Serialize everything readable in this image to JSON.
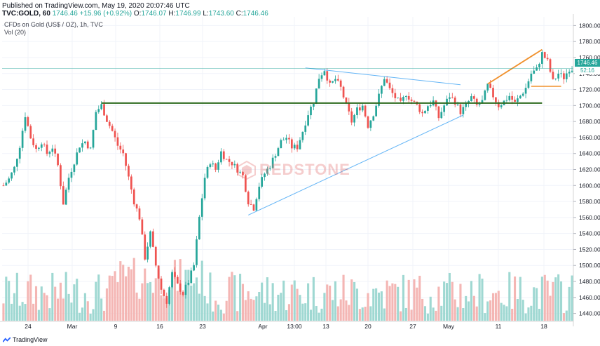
{
  "header": {
    "published": "Published on TradingView.com, May 19, 2020 20:07:46 UTC",
    "symbol": "TVC:GOLD, 60",
    "last": "1746.46",
    "change": "+15.96 (+0.92%)",
    "o_label": "O:",
    "o_value": "1746.07",
    "h_label": "H:",
    "h_value": "1746.99",
    "l_label": "L:",
    "l_value": "1743.60",
    "c_label": "C:",
    "c_value": "1746.46"
  },
  "legend": {
    "series_title": "CFDs on Gold (US$ / OZ), 1h, TVC",
    "volume_title": "Vol (20)"
  },
  "price_badge": {
    "value": "1746.46",
    "countdown": "52:16"
  },
  "watermark": {
    "text": "REDSTONE",
    "logo": "redstone-logo-icon"
  },
  "footer": {
    "brand": "TradingView",
    "icon": "tradingview-logo-icon"
  },
  "colors": {
    "up": "#26a69a",
    "down": "#ef5350",
    "up_volume": "#9fd8d2",
    "down_volume": "#f4b6b4",
    "support_line": "#2e6b1f",
    "trend_line": "#64b5f6",
    "orange_line": "#f0902c",
    "last_price_line": "#26a69a"
  },
  "chart_data": {
    "type": "candlestick",
    "title": "CFDs on Gold (US$ / OZ), 1h, TVC",
    "y_ticks": [
      1440,
      1460,
      1480,
      1500,
      1520,
      1540,
      1560,
      1580,
      1600,
      1620,
      1640,
      1660,
      1680,
      1700,
      1720,
      1740,
      1760,
      1780,
      1800
    ],
    "ylim": [
      1425,
      1810
    ],
    "x_ticks": [
      "24",
      "Mar",
      "9",
      "16",
      "23",
      "Apr",
      "13:00",
      "13",
      "20",
      "27",
      "May",
      "11",
      "18"
    ],
    "path_points": [
      [
        0,
        1600
      ],
      [
        2,
        1608
      ],
      [
        4,
        1622
      ],
      [
        6,
        1650
      ],
      [
        8,
        1688
      ],
      [
        10,
        1660
      ],
      [
        12,
        1645
      ],
      [
        14,
        1655
      ],
      [
        16,
        1640
      ],
      [
        18,
        1648
      ],
      [
        20,
        1625
      ],
      [
        22,
        1578
      ],
      [
        24,
        1610
      ],
      [
        26,
        1630
      ],
      [
        28,
        1650
      ],
      [
        30,
        1655
      ],
      [
        32,
        1645
      ],
      [
        34,
        1692
      ],
      [
        36,
        1700
      ],
      [
        38,
        1682
      ],
      [
        40,
        1668
      ],
      [
        42,
        1650
      ],
      [
        44,
        1640
      ],
      [
        46,
        1610
      ],
      [
        48,
        1580
      ],
      [
        50,
        1560
      ],
      [
        52,
        1510
      ],
      [
        54,
        1540
      ],
      [
        56,
        1500
      ],
      [
        58,
        1470
      ],
      [
        60,
        1455
      ],
      [
        62,
        1490
      ],
      [
        64,
        1475
      ],
      [
        66,
        1465
      ],
      [
        68,
        1480
      ],
      [
        70,
        1500
      ],
      [
        72,
        1560
      ],
      [
        74,
        1610
      ],
      [
        76,
        1630
      ],
      [
        78,
        1620
      ],
      [
        80,
        1642
      ],
      [
        82,
        1632
      ],
      [
        84,
        1628
      ],
      [
        86,
        1620
      ],
      [
        88,
        1612
      ],
      [
        90,
        1580
      ],
      [
        92,
        1572
      ],
      [
        94,
        1600
      ],
      [
        96,
        1615
      ],
      [
        98,
        1625
      ],
      [
        100,
        1640
      ],
      [
        102,
        1655
      ],
      [
        104,
        1660
      ],
      [
        106,
        1648
      ],
      [
        108,
        1648
      ],
      [
        110,
        1668
      ],
      [
        112,
        1690
      ],
      [
        114,
        1705
      ],
      [
        116,
        1735
      ],
      [
        118,
        1745
      ],
      [
        120,
        1725
      ],
      [
        122,
        1733
      ],
      [
        124,
        1722
      ],
      [
        126,
        1700
      ],
      [
        128,
        1680
      ],
      [
        130,
        1695
      ],
      [
        132,
        1700
      ],
      [
        134,
        1675
      ],
      [
        136,
        1690
      ],
      [
        138,
        1712
      ],
      [
        140,
        1735
      ],
      [
        142,
        1720
      ],
      [
        144,
        1710
      ],
      [
        146,
        1702
      ],
      [
        148,
        1715
      ],
      [
        150,
        1706
      ],
      [
        152,
        1700
      ],
      [
        154,
        1690
      ],
      [
        156,
        1700
      ],
      [
        158,
        1705
      ],
      [
        160,
        1685
      ],
      [
        162,
        1700
      ],
      [
        164,
        1712
      ],
      [
        166,
        1705
      ],
      [
        168,
        1692
      ],
      [
        170,
        1700
      ],
      [
        172,
        1710
      ],
      [
        174,
        1700
      ],
      [
        176,
        1705
      ],
      [
        178,
        1725
      ],
      [
        180,
        1712
      ],
      [
        182,
        1700
      ],
      [
        184,
        1705
      ],
      [
        186,
        1712
      ],
      [
        188,
        1703
      ],
      [
        190,
        1712
      ],
      [
        192,
        1722
      ],
      [
        194,
        1740
      ],
      [
        196,
        1745
      ],
      [
        198,
        1765
      ],
      [
        200,
        1755
      ],
      [
        202,
        1730
      ],
      [
        204,
        1740
      ],
      [
        206,
        1735
      ],
      [
        208,
        1746
      ]
    ],
    "annotations": [
      {
        "type": "horizontal_support",
        "from_index": 36,
        "to_index": 198,
        "y": 1703,
        "color": "#2e6b1f"
      },
      {
        "type": "trend_line",
        "from": [
          111,
          1747
        ],
        "to": [
          168,
          1726
        ],
        "color": "#64b5f6"
      },
      {
        "type": "trend_line",
        "from": [
          90,
          1563
        ],
        "to": [
          169,
          1688
        ],
        "color": "#64b5f6"
      },
      {
        "type": "trend_line",
        "from": [
          178,
          1727
        ],
        "to": [
          198,
          1770
        ],
        "color": "#f0902c"
      },
      {
        "type": "horizontal_segment",
        "from_index": 194,
        "to_index": 205,
        "y": 1724,
        "color": "#f0902c"
      }
    ],
    "last_price": 1746.46
  }
}
